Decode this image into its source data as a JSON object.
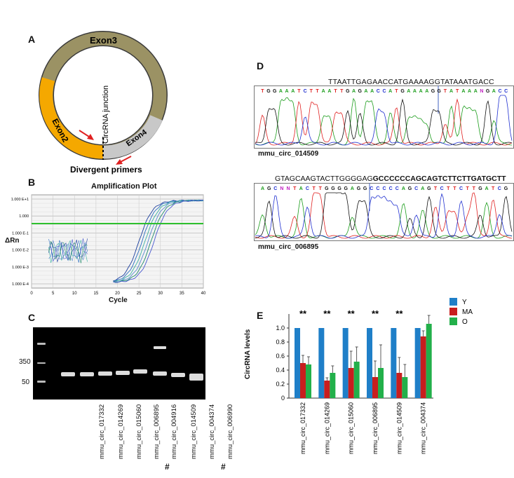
{
  "panel_a": {
    "label": "A",
    "exon3": "Exon3",
    "exon2": "Exon2",
    "exon4": "Exon4",
    "junction": "CircRNA junction",
    "primers": "Divergent primers"
  },
  "panel_b": {
    "label": "B",
    "title": "Amplification Plot",
    "xlabel": "Cycle",
    "ylabel": "ΔRn",
    "yticks": [
      "1.000 E+1",
      "1.000",
      "1.000 E-1",
      "1.000 E-2",
      "1.000 E-3",
      "1.000 E-4"
    ],
    "xticks": [
      "0",
      "5",
      "10",
      "15",
      "20",
      "25",
      "30",
      "35",
      "40"
    ]
  },
  "panel_c": {
    "label": "C",
    "size_350": "350",
    "size_50": "50",
    "lanes": [
      "mmu_circ_017332",
      "mmu_circ_014269",
      "mmu_circ_015060",
      "mmu_circ_006895",
      "mmu_circ_004916",
      "mmu_circ_014509",
      "mmu_circ_004374",
      "mmu_circ_006990"
    ],
    "hash": "#"
  },
  "panel_d": {
    "label": "D",
    "seq1_top": "TTAATTGAGAACCATGAAAAGGTATAAATGACC",
    "seq1_called": [
      "T",
      "G",
      "G",
      "A",
      "A",
      "A",
      "T",
      "C",
      "T",
      "T",
      "A",
      "A",
      "T",
      "T",
      "G",
      "A",
      "G",
      "A",
      "A",
      "C",
      "C",
      "A",
      "T",
      "G",
      "A",
      "A",
      "A",
      "A",
      "G",
      "G",
      "T",
      "A",
      "T",
      "A",
      "A",
      "A",
      "N",
      "G",
      "A",
      "C",
      "C"
    ],
    "seq1_name": "mmu_circ_014509",
    "seq2_top_normal": "GTAGCAAGTACTTGGGGAG",
    "seq2_top_bold": "GCCCCCCAGCAGTCTTCTTGATGCTT",
    "seq2_called": [
      "A",
      "G",
      "C",
      "N",
      "N",
      "T",
      "A",
      "C",
      "T",
      "T",
      "G",
      "G",
      "G",
      "G",
      "A",
      "G",
      "G",
      "C",
      "C",
      "C",
      "C",
      "C",
      "A",
      "G",
      "C",
      "A",
      "G",
      "T",
      "C",
      "T",
      "T",
      "C",
      "T",
      "T",
      "G",
      "A",
      "T",
      "C",
      "G"
    ],
    "seq2_name": "mmu_circ_006895",
    "base_colors": {
      "A": "#1a9c1a",
      "T": "#e02020",
      "G": "#111111",
      "C": "#2030d0",
      "N": "#c020c0"
    }
  },
  "panel_e": {
    "label": "E",
    "ylabel": "CircRNA levels",
    "significance": "**",
    "chart_data": {
      "type": "bar",
      "categories": [
        "mmu_circ_017332",
        "mmu_circ_014269",
        "mmu_circ_015060",
        "mmu_circ_006895",
        "mmu_circ_014509",
        "mmu_circ_004374"
      ],
      "series": [
        {
          "name": "Y",
          "color": "#1f7fc8",
          "values": [
            1.0,
            1.0,
            1.0,
            1.0,
            1.0,
            1.0
          ],
          "errors": [
            0,
            0,
            0,
            0,
            0,
            0
          ]
        },
        {
          "name": "MA",
          "color": "#c81e1e",
          "values": [
            0.5,
            0.25,
            0.43,
            0.3,
            0.36,
            0.88
          ],
          "errors": [
            0.11,
            0.04,
            0.24,
            0.23,
            0.22,
            0.08
          ]
        },
        {
          "name": "O",
          "color": "#22b04a",
          "values": [
            0.48,
            0.36,
            0.52,
            0.43,
            0.3,
            1.06
          ],
          "errors": [
            0.11,
            0.1,
            0.21,
            0.33,
            0.18,
            0.12
          ]
        }
      ],
      "yticks": [
        "0",
        "0.2",
        "0.4",
        "0.6",
        "0.8",
        "1.0"
      ],
      "ylim": [
        0,
        1.2
      ],
      "significant": [
        true,
        true,
        true,
        true,
        true,
        false
      ],
      "legend": [
        "Y",
        "MA",
        "O"
      ]
    }
  }
}
